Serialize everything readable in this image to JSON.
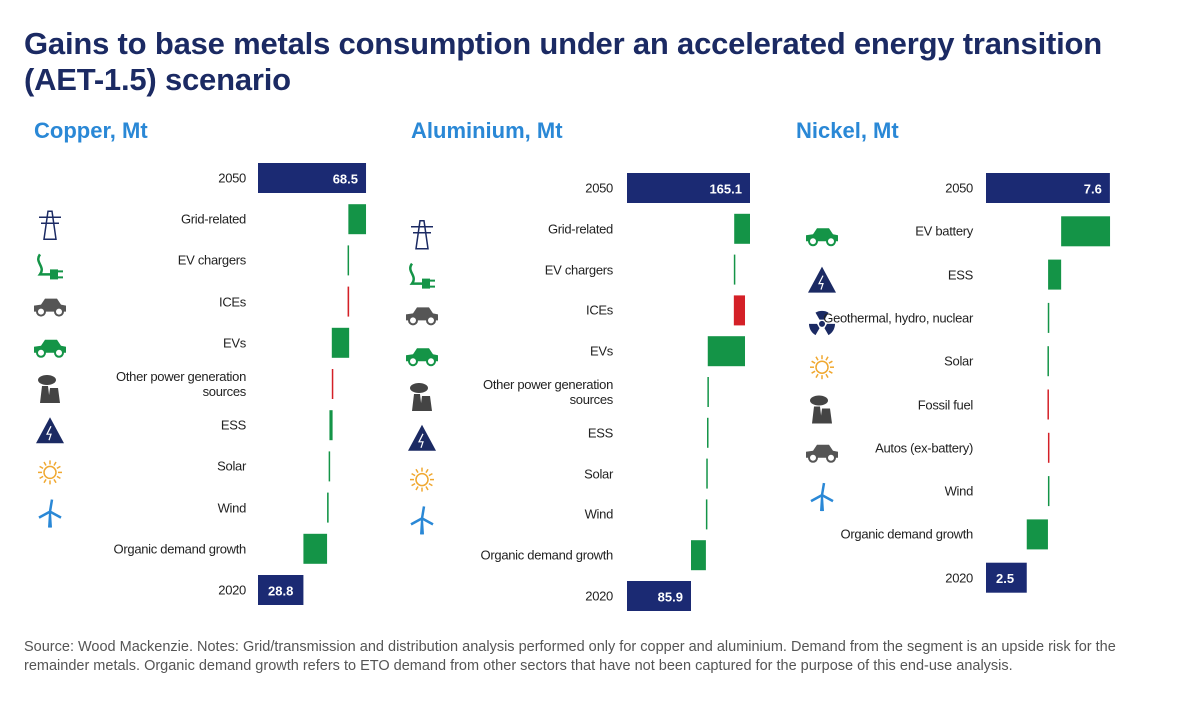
{
  "title": "Gains to base metals consumption under an accelerated energy transition (AET-1.5) scenario",
  "source": "Source: Wood Mackenzie. Notes: Grid/transmission and distribution analysis performed only for copper and aluminium. Demand from the segment is an upside risk for the remainder metals. Organic demand growth refers to ETO demand from other sectors that have not been captured for the purpose of this end-use analysis.",
  "chart_data": [
    {
      "type": "waterfall",
      "title": "Copper, Mt",
      "categories": [
        "2050",
        "Grid-related",
        "EV chargers",
        "ICEs",
        "EVs",
        "Other power generation sources",
        "ESS",
        "Solar",
        "Wind",
        "Organic demand growth",
        "2020"
      ],
      "values": [
        68.5,
        11.2,
        0.5,
        -1,
        11,
        -0.5,
        2,
        0.5,
        1,
        15,
        28.8
      ],
      "totals": [
        true,
        false,
        false,
        false,
        false,
        false,
        false,
        false,
        false,
        false,
        true
      ],
      "colors": {
        "total": "#1b2a73",
        "increase": "#149447",
        "decrease": "#d42027"
      }
    },
    {
      "type": "waterfall",
      "title": "Aluminium, Mt",
      "categories": [
        "2050",
        "Grid-related",
        "EV chargers",
        "ICEs",
        "EVs",
        "Other power generation sources",
        "ESS",
        "Solar",
        "Wind",
        "Organic demand growth",
        "2020"
      ],
      "values": [
        165.1,
        21.2,
        0.5,
        -15,
        50,
        0.5,
        0.5,
        1,
        0.5,
        20,
        85.9
      ],
      "totals": [
        true,
        false,
        false,
        false,
        false,
        false,
        false,
        false,
        false,
        false,
        true
      ],
      "colors": {
        "total": "#1b2a73",
        "increase": "#149447",
        "decrease": "#d42027"
      }
    },
    {
      "type": "waterfall",
      "title": "Nickel, Mt",
      "categories": [
        "2050",
        "EV battery",
        "ESS",
        "Geothermal, hydro, nuclear",
        "Solar",
        "Fossil fuel",
        "Autos (ex-battery)",
        "Wind",
        "Organic demand growth",
        "2020"
      ],
      "values": [
        7.6,
        3.0,
        0.8,
        0.02,
        0.02,
        -0.03,
        -0.03,
        0.03,
        1.3,
        2.5
      ],
      "totals": [
        true,
        false,
        false,
        false,
        false,
        false,
        false,
        false,
        false,
        true
      ],
      "colors": {
        "total": "#1b2a73",
        "increase": "#149447",
        "decrease": "#d42027"
      }
    }
  ]
}
